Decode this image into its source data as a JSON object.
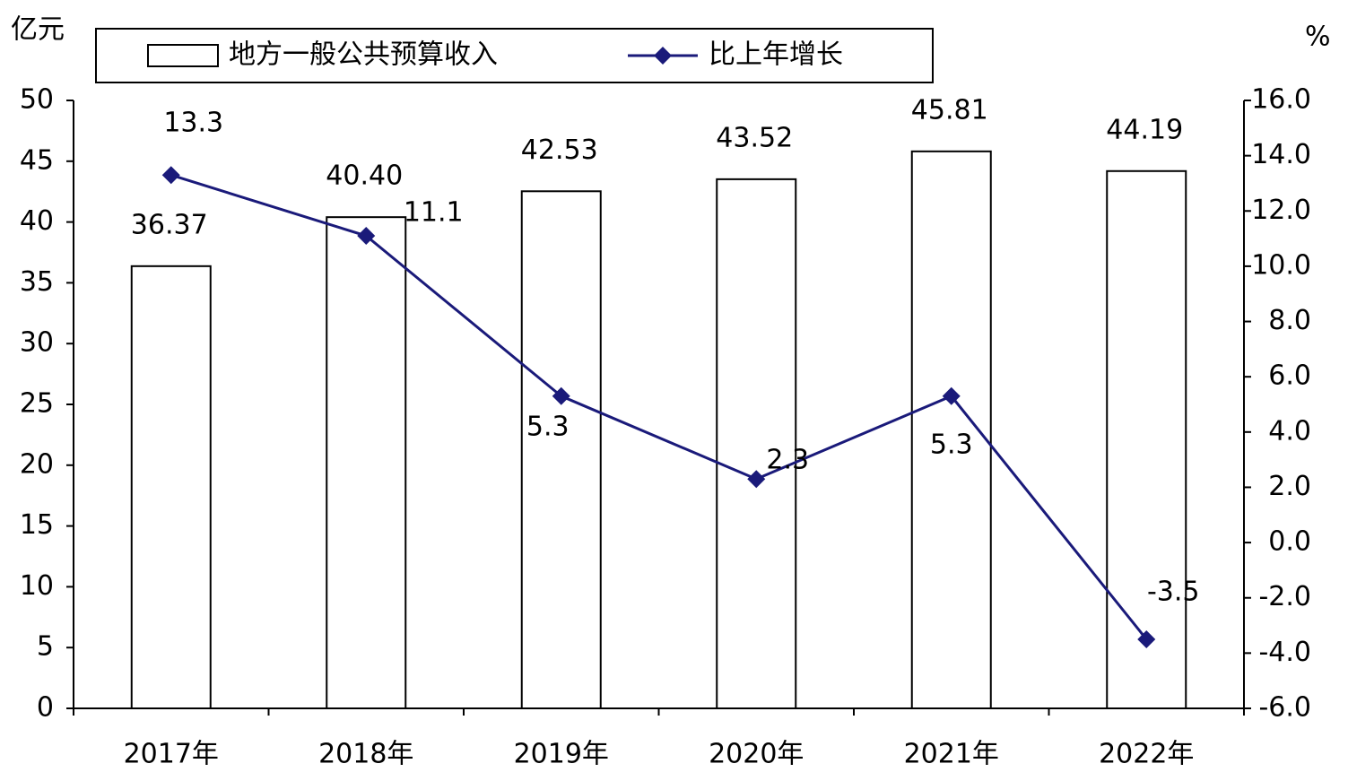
{
  "chart_data": {
    "type": "bar",
    "y_label": "亿元",
    "y2_label": "%",
    "categories": [
      "2017年",
      "2018年",
      "2019年",
      "2020年",
      "2021年",
      "2022年"
    ],
    "series": [
      {
        "name": "地方一般公共预算收入",
        "type": "bar",
        "color": "#ffffff",
        "edge_color": "#000000",
        "values": [
          36.37,
          40.4,
          42.53,
          43.52,
          45.81,
          44.19
        ],
        "value_labels": [
          "36.37",
          "40.40",
          "42.53",
          "43.52",
          "45.81",
          "44.19"
        ]
      },
      {
        "name": "比上年增长",
        "type": "line",
        "axis": "y2",
        "color": "#1a1a7a",
        "values": [
          13.3,
          11.1,
          5.3,
          2.3,
          5.3,
          -3.5
        ]
      }
    ],
    "ylim": [
      0,
      50
    ],
    "yticks": [
      0,
      5,
      10,
      15,
      20,
      25,
      30,
      35,
      40,
      45,
      50
    ],
    "y2lim": [
      -6,
      16
    ],
    "y2ticks": [
      {
        "value": -6,
        "label": "-6.0"
      },
      {
        "value": -4,
        "label": "-4.0"
      },
      {
        "value": -2,
        "label": "-2.0"
      },
      {
        "value": 0,
        "label": "0.0"
      },
      {
        "value": 2,
        "label": "2.0"
      },
      {
        "value": 4,
        "label": "4.0"
      },
      {
        "value": 6,
        "label": "6.0"
      },
      {
        "value": 8,
        "label": "8.0"
      },
      {
        "value": 10,
        "label": "10.0"
      },
      {
        "value": 12,
        "label": "12.0"
      },
      {
        "value": 14,
        "label": "14.0"
      },
      {
        "value": 16,
        "label": "16.0"
      }
    ],
    "grid": false,
    "legend": "top"
  }
}
